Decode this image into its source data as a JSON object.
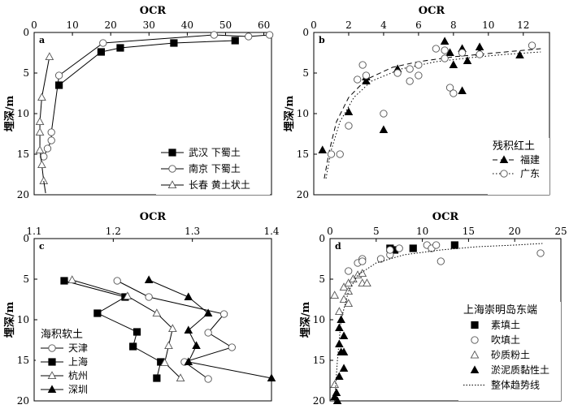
{
  "chart_data": [
    {
      "id": "a",
      "type": "line",
      "panel_label": "a",
      "xlabel": "OCR",
      "ylabel": "埋深/m",
      "xlim": [
        0,
        62
      ],
      "ylim": [
        0,
        20
      ],
      "y_inverted": true,
      "x_axis_position": "top",
      "xticks": [
        "0",
        "10",
        "20",
        "30",
        "40",
        "50",
        "60"
      ],
      "yticks": [
        "0",
        "5",
        "10",
        "15",
        "20"
      ],
      "legend_position": "bottom-right",
      "series": [
        {
          "name": "武汉 下蜀土",
          "marker": "square-filled",
          "x": [
            52.5,
            36.5,
            22.5,
            17.5,
            6.5
          ],
          "y": [
            1.0,
            1.3,
            1.9,
            2.4,
            6.5
          ]
        },
        {
          "name": "南京 下蜀土",
          "marker": "circle-open",
          "x": [
            61.5,
            56,
            47,
            18,
            6.5,
            4.5,
            4.5,
            3.5,
            2.5
          ],
          "y": [
            0.3,
            0.5,
            0.3,
            1.3,
            5.3,
            12.3,
            13.3,
            14.3,
            15.3
          ]
        },
        {
          "name": "长春 黄土状土",
          "marker": "triangle-open",
          "x": [
            4,
            2,
            1.5,
            1.5,
            1.5,
            2,
            2.5
          ],
          "y": [
            3,
            8,
            11,
            12.3,
            14.5,
            16.3,
            18.3
          ]
        }
      ],
      "tail": {
        "x": [
          2.5,
          3
        ],
        "y": [
          18.3,
          19.8
        ]
      }
    },
    {
      "id": "b",
      "type": "scatter",
      "panel_label": "b",
      "xlabel": "OCR",
      "ylabel": "埋深/m",
      "xlim": [
        0,
        13.5
      ],
      "ylim": [
        0,
        20
      ],
      "y_inverted": true,
      "x_axis_position": "top",
      "xticks": [
        "0",
        "2",
        "4",
        "6",
        "8",
        "10",
        "12"
      ],
      "yticks": [
        "0",
        "5",
        "10",
        "15",
        "20"
      ],
      "legend_title": "残积红土",
      "legend_position": "bottom-right",
      "series": [
        {
          "name": "福建",
          "marker": "triangle-filled",
          "points": [
            [
              0.5,
              14.5
            ],
            [
              2.0,
              9.8
            ],
            [
              3.0,
              5.5
            ],
            [
              3.0,
              6.0
            ],
            [
              4.0,
              12.0
            ],
            [
              4.8,
              4.5
            ],
            [
              7.5,
              1.1
            ],
            [
              7.8,
              2.5
            ],
            [
              8.0,
              4.0
            ],
            [
              8.5,
              2.0
            ],
            [
              8.5,
              7.2
            ],
            [
              8.8,
              3.5
            ],
            [
              9.5,
              1.8
            ],
            [
              9.5,
              2.5
            ],
            [
              11.8,
              2.8
            ]
          ],
          "trend": [
            [
              0.6,
              18
            ],
            [
              0.9,
              14.5
            ],
            [
              1.3,
              11
            ],
            [
              2,
              8
            ],
            [
              3,
              5.8
            ],
            [
              4.5,
              4.3
            ],
            [
              6,
              3.6
            ],
            [
              8,
              3.0
            ],
            [
              10,
              2.6
            ],
            [
              12,
              2.2
            ],
            [
              13,
              2.0
            ]
          ]
        },
        {
          "name": "广东",
          "marker": "circle-open",
          "points": [
            [
              1.0,
              15.0
            ],
            [
              1.5,
              15.0
            ],
            [
              2.0,
              11.5
            ],
            [
              2.5,
              5.8
            ],
            [
              2.8,
              4.0
            ],
            [
              3.0,
              5.3
            ],
            [
              4.0,
              10.0
            ],
            [
              4.8,
              5.0
            ],
            [
              5.5,
              6.0
            ],
            [
              5.5,
              4.5
            ],
            [
              6.0,
              4.0
            ],
            [
              6.0,
              5.3
            ],
            [
              7.0,
              2.0
            ],
            [
              7.5,
              2.2
            ],
            [
              7.5,
              3.2
            ],
            [
              7.8,
              6.8
            ],
            [
              8.0,
              7.5
            ],
            [
              8.5,
              2.5
            ],
            [
              9.5,
              2.7
            ],
            [
              12.5,
              1.6
            ]
          ],
          "trend": [
            [
              0.7,
              18
            ],
            [
              1.0,
              14.5
            ],
            [
              1.5,
              11
            ],
            [
              2.3,
              8
            ],
            [
              3.3,
              6
            ],
            [
              5,
              4.5
            ],
            [
              7,
              3.6
            ],
            [
              9,
              3.1
            ],
            [
              11,
              2.7
            ],
            [
              13,
              2.4
            ]
          ]
        }
      ]
    },
    {
      "id": "c",
      "type": "line",
      "panel_label": "c",
      "xlabel": "OCR",
      "ylabel": "埋深/m",
      "xlim": [
        1.1,
        1.4
      ],
      "ylim": [
        0,
        20
      ],
      "y_inverted": true,
      "x_axis_position": "top",
      "xticks": [
        "1.1",
        "1.2",
        "1.3",
        "1.4"
      ],
      "yticks": [
        "0",
        "5",
        "10",
        "15",
        "20"
      ],
      "legend_title": "海积软土",
      "legend_position": "bottom-left",
      "series": [
        {
          "name": "天津",
          "marker": "circle-open",
          "x": [
            1.205,
            1.245,
            1.34,
            1.32,
            1.35,
            1.29,
            1.32
          ],
          "y": [
            5.2,
            7.2,
            9.3,
            11.6,
            13.4,
            15.2,
            17.3
          ]
        },
        {
          "name": "上海",
          "marker": "square-filled",
          "x": [
            1.138,
            1.215,
            1.18,
            1.23,
            1.225,
            1.26,
            1.255
          ],
          "y": [
            5.2,
            7.2,
            9.2,
            11.5,
            13.3,
            15.2,
            17.2
          ]
        },
        {
          "name": "杭州",
          "marker": "triangle-open",
          "x": [
            1.148,
            1.218,
            1.255,
            1.275,
            1.27,
            1.265,
            1.285
          ],
          "y": [
            5.1,
            7.1,
            9.2,
            11.1,
            13.2,
            15.3,
            17.2
          ]
        },
        {
          "name": "深圳",
          "marker": "triangle-filled",
          "x": [
            1.245,
            1.295,
            1.32,
            1.295,
            1.305,
            1.295,
            1.4
          ],
          "y": [
            5.1,
            7.2,
            9.2,
            11.3,
            13.2,
            15.2,
            17.2
          ]
        }
      ]
    },
    {
      "id": "d",
      "type": "scatter",
      "panel_label": "d",
      "xlabel": "OCR",
      "ylabel": "埋深/m",
      "xlim": [
        0,
        25
      ],
      "ylim": [
        0,
        20
      ],
      "y_inverted": true,
      "x_axis_position": "top",
      "xticks": [
        "0",
        "5",
        "10",
        "15",
        "20",
        "25"
      ],
      "yticks": [
        "0",
        "5",
        "10",
        "15",
        "20"
      ],
      "legend_title": "上海崇明岛东端",
      "legend_position": "bottom-right",
      "series": [
        {
          "name": "素填土",
          "marker": "square-filled",
          "points": [
            [
              6.5,
              1.2
            ],
            [
              7.0,
              1.4
            ],
            [
              9.0,
              1.2
            ],
            [
              13.5,
              0.8
            ]
          ]
        },
        {
          "name": "吹填土",
          "marker": "circle-open",
          "points": [
            [
              2.0,
              4.0
            ],
            [
              3.0,
              3.0
            ],
            [
              3.5,
              2.5
            ],
            [
              3.5,
              2.8
            ],
            [
              5.5,
              2.5
            ],
            [
              6.5,
              2.0
            ],
            [
              6.5,
              1.4
            ],
            [
              7.5,
              1.2
            ],
            [
              10.5,
              0.8
            ],
            [
              11.0,
              1.2
            ],
            [
              11.5,
              0.8
            ],
            [
              12.0,
              2.8
            ],
            [
              22.8,
              1.8
            ]
          ]
        },
        {
          "name": "砂质粉土",
          "marker": "triangle-open",
          "points": [
            [
              0.5,
              18.0
            ],
            [
              0.5,
              7.0
            ],
            [
              1.0,
              9.0
            ],
            [
              1.5,
              6.0
            ],
            [
              1.5,
              7.5
            ],
            [
              2.0,
              5.5
            ],
            [
              2.0,
              6.5
            ],
            [
              2.0,
              8.0
            ],
            [
              2.5,
              5.0
            ],
            [
              3.0,
              4.5
            ],
            [
              3.5,
              4.3
            ],
            [
              3.5,
              5.5
            ],
            [
              4.0,
              5.5
            ]
          ]
        },
        {
          "name": "淤泥质黏性土",
          "marker": "triangle-filled",
          "points": [
            [
              0.5,
              19.5
            ],
            [
              0.7,
              19.0
            ],
            [
              0.8,
              20.0
            ],
            [
              1.0,
              13.0
            ],
            [
              1.0,
              17.0
            ],
            [
              1.0,
              11.0
            ],
            [
              1.2,
              14.0
            ],
            [
              1.2,
              10.0
            ],
            [
              1.5,
              14.0
            ],
            [
              1.5,
              12.0
            ],
            [
              1.5,
              16.0
            ]
          ]
        },
        {
          "name": "整体趋势线",
          "marker": "none",
          "trend": [
            [
              0.5,
              20
            ],
            [
              0.8,
              15
            ],
            [
              1.2,
              10
            ],
            [
              2,
              6.5
            ],
            [
              3,
              4.5
            ],
            [
              5,
              3.0
            ],
            [
              8,
              2.0
            ],
            [
              12,
              1.4
            ],
            [
              16,
              1.0
            ],
            [
              20,
              0.8
            ],
            [
              23,
              0.6
            ]
          ]
        }
      ]
    }
  ]
}
